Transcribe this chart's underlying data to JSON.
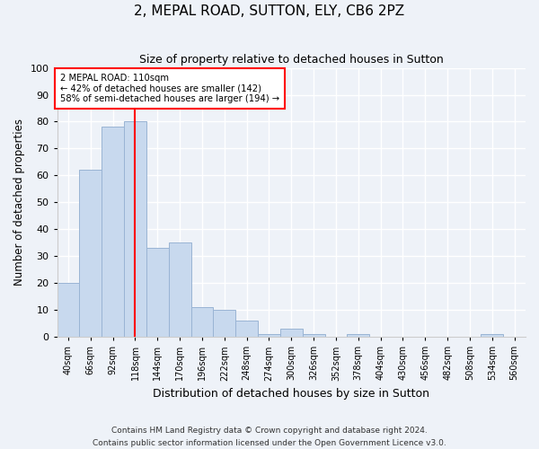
{
  "title": "2, MEPAL ROAD, SUTTON, ELY, CB6 2PZ",
  "subtitle": "Size of property relative to detached houses in Sutton",
  "xlabel": "Distribution of detached houses by size in Sutton",
  "ylabel": "Number of detached properties",
  "bin_labels": [
    "40sqm",
    "66sqm",
    "92sqm",
    "118sqm",
    "144sqm",
    "170sqm",
    "196sqm",
    "222sqm",
    "248sqm",
    "274sqm",
    "300sqm",
    "326sqm",
    "352sqm",
    "378sqm",
    "404sqm",
    "430sqm",
    "456sqm",
    "482sqm",
    "508sqm",
    "534sqm",
    "560sqm"
  ],
  "bar_heights": [
    20,
    62,
    78,
    80,
    33,
    35,
    11,
    10,
    6,
    1,
    3,
    1,
    0,
    1,
    0,
    0,
    0,
    0,
    0,
    1,
    0
  ],
  "bar_color": "#c8d9ee",
  "bar_edge_color": "#9ab4d4",
  "vline_x_index": 3,
  "vline_color": "red",
  "annotation_text": "2 MEPAL ROAD: 110sqm\n← 42% of detached houses are smaller (142)\n58% of semi-detached houses are larger (194) →",
  "annotation_box_color": "white",
  "annotation_box_edge_color": "red",
  "ylim": [
    0,
    100
  ],
  "yticks": [
    0,
    10,
    20,
    30,
    40,
    50,
    60,
    70,
    80,
    90,
    100
  ],
  "footer1": "Contains HM Land Registry data © Crown copyright and database right 2024.",
  "footer2": "Contains public sector information licensed under the Open Government Licence v3.0.",
  "bg_color": "#eef2f8"
}
